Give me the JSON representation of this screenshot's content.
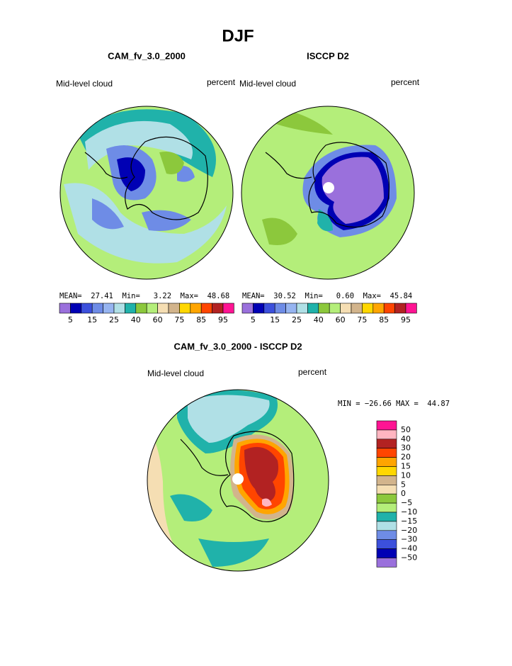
{
  "title": "DJF",
  "panels": [
    {
      "title": "CAM_fv_3.0_2000",
      "left_label": "Mid-level cloud",
      "right_label": "percent",
      "stats": "MEAN=  27.41  Min=   3.22  Max=  48.68"
    },
    {
      "title": "ISCCP D2",
      "left_label": "Mid-level cloud",
      "right_label": "percent",
      "stats": "MEAN=  30.52  Min=   0.60  Max=  45.84"
    }
  ],
  "colorbar": {
    "colors": [
      "#9a70dc",
      "#0000b4",
      "#3c50dc",
      "#6e8ce6",
      "#96b4f0",
      "#b0e0e6",
      "#20b2aa",
      "#8cc83c",
      "#b4ee7a",
      "#f5deb3",
      "#d2b48c",
      "#ffd700",
      "#ffa500",
      "#ff4500",
      "#b22222",
      "#ff1493"
    ],
    "labels": [
      "5",
      "15",
      "25",
      "40",
      "60",
      "75",
      "85",
      "95"
    ]
  },
  "difference": {
    "title": "CAM_fv_3.0_2000 - ISCCP D2",
    "left_label": "Mid-level cloud",
    "right_label": "percent",
    "stats": "MIN = −26.66 MAX =  44.87",
    "colors": [
      "#ff1493",
      "#ffb6c1",
      "#b22222",
      "#ff4500",
      "#ffa500",
      "#ffd700",
      "#d2b48c",
      "#f5deb3",
      "#8cc83c",
      "#b4ee7a",
      "#20b2aa",
      "#b0e0e6",
      "#6e8ce6",
      "#3c50dc",
      "#0000b4",
      "#9a70dc"
    ],
    "labels": [
      "50",
      "40",
      "30",
      "20",
      "15",
      "10",
      "5",
      "0",
      "−5",
      "−10",
      "−15",
      "−20",
      "−30",
      "−40",
      "−50"
    ]
  }
}
